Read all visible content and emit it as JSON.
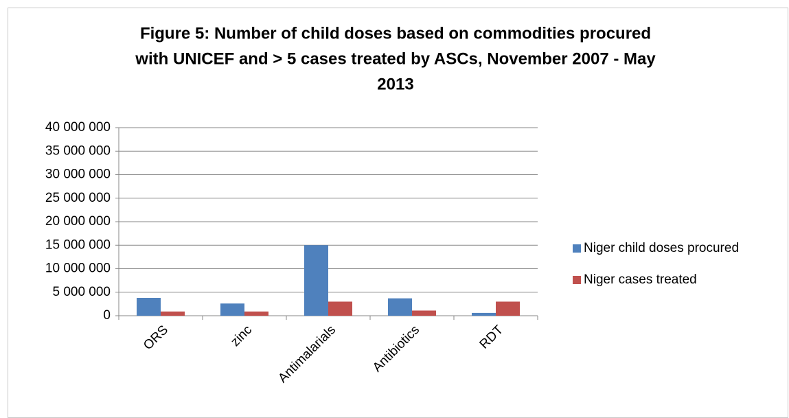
{
  "chart_data": {
    "type": "bar",
    "title": [
      "Figure 5: Number of child doses based on commodities procured",
      "with UNICEF and > 5 cases treated by ASCs,  November 2007 - May",
      "2013"
    ],
    "categories": [
      "ORS",
      "zinc",
      "Antimalarials",
      "Antibiotics",
      "RDT"
    ],
    "series": [
      {
        "name": "Niger child doses procured",
        "color": "#4f81bd",
        "values": [
          3800000,
          2600000,
          15000000,
          3700000,
          600000
        ]
      },
      {
        "name": "Niger cases treated",
        "color": "#c0504d",
        "values": [
          900000,
          900000,
          3000000,
          1100000,
          3000000
        ]
      }
    ],
    "ylim": [
      0,
      40000000
    ],
    "yticks": [
      0,
      {
        "value": 5000000,
        "label": "5 000 000"
      },
      {
        "value": 10000000,
        "label": "10 000 000"
      },
      {
        "value": 15000000,
        "label": "15 000 000"
      },
      {
        "value": 20000000,
        "label": "20 000 000"
      },
      {
        "value": 25000000,
        "label": "25 000 000"
      },
      {
        "value": 30000000,
        "label": "30 000 000"
      },
      {
        "value": 35000000,
        "label": "35 000 000"
      },
      {
        "value": 40000000,
        "label": "40 000 000"
      }
    ],
    "grid": true,
    "legend": "right"
  }
}
